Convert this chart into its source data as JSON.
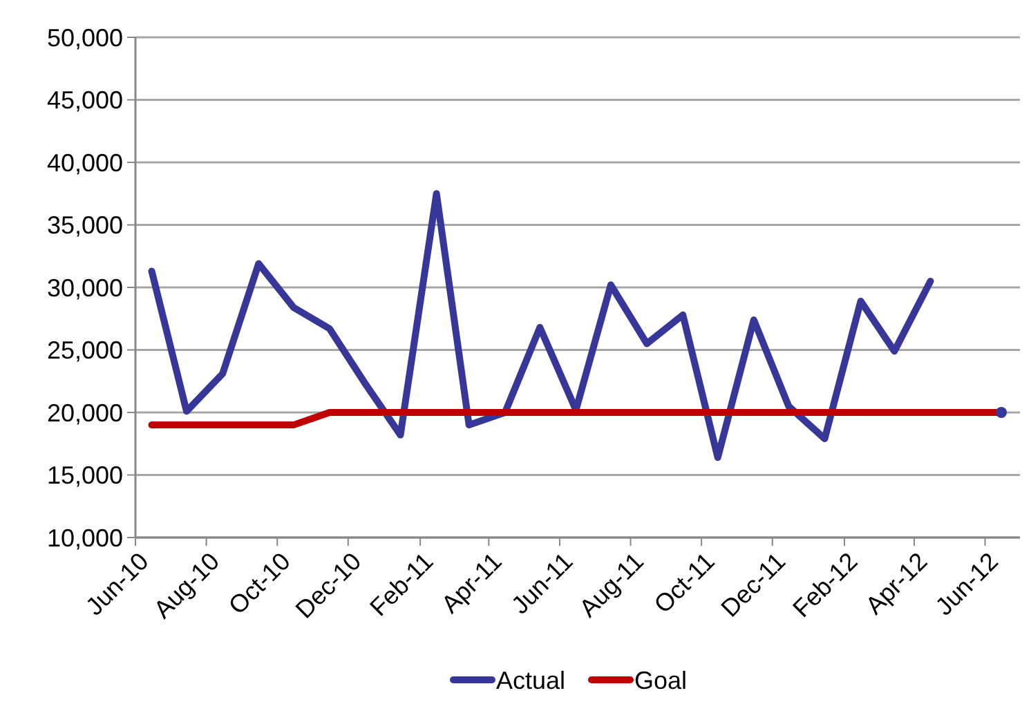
{
  "chart_data": {
    "type": "line",
    "x": [
      "2010-06-15",
      "2010-07-15",
      "2010-08-15",
      "2010-09-15",
      "2010-10-15",
      "2010-11-15",
      "2010-12-15",
      "2011-01-15",
      "2011-02-15",
      "2011-03-15",
      "2011-04-15",
      "2011-05-15",
      "2011-06-15",
      "2011-07-15",
      "2011-08-15",
      "2011-09-15",
      "2011-10-15",
      "2011-11-15",
      "2011-12-15",
      "2012-01-15",
      "2012-02-15",
      "2012-03-15",
      "2012-04-15",
      "2012-05-15",
      "2012-06-15"
    ],
    "series": [
      {
        "name": "Actual",
        "color": "#373799",
        "values": [
          31300,
          20100,
          23100,
          31900,
          28400,
          26700,
          22400,
          18200,
          37500,
          19000,
          20000,
          26800,
          20200,
          30200,
          25500,
          27800,
          16400,
          27400,
          20500,
          17900,
          28900,
          24900,
          30500,
          null,
          20000
        ]
      },
      {
        "name": "Goal",
        "color": "#c00000",
        "values": [
          19000,
          19000,
          19000,
          19000,
          19000,
          20000,
          20000,
          20000,
          20000,
          20000,
          20000,
          20000,
          20000,
          20000,
          20000,
          20000,
          20000,
          20000,
          20000,
          20000,
          20000,
          20000,
          20000,
          20000,
          20000
        ]
      }
    ],
    "xlim": [
      "2010-06-01",
      "2012-07-01"
    ],
    "xticks": [
      {
        "value": "2010-06-01",
        "label": "Jun-10"
      },
      {
        "value": "2010-08-01",
        "label": "Aug-10"
      },
      {
        "value": "2010-10-01",
        "label": "Oct-10"
      },
      {
        "value": "2010-12-01",
        "label": "Dec-10"
      },
      {
        "value": "2011-02-01",
        "label": "Feb-11"
      },
      {
        "value": "2011-04-01",
        "label": "Apr-11"
      },
      {
        "value": "2011-06-01",
        "label": "Jun-11"
      },
      {
        "value": "2011-08-01",
        "label": "Aug-11"
      },
      {
        "value": "2011-10-01",
        "label": "Oct-11"
      },
      {
        "value": "2011-12-01",
        "label": "Dec-11"
      },
      {
        "value": "2012-02-01",
        "label": "Feb-12"
      },
      {
        "value": "2012-04-01",
        "label": "Apr-12"
      },
      {
        "value": "2012-06-01",
        "label": "Jun-12"
      }
    ],
    "ylim": [
      10000,
      50000
    ],
    "yticks": [
      {
        "value": 10000,
        "label": "10,000"
      },
      {
        "value": 15000,
        "label": "15,000"
      },
      {
        "value": 20000,
        "label": "20,000"
      },
      {
        "value": 25000,
        "label": "25,000"
      },
      {
        "value": 30000,
        "label": "30,000"
      },
      {
        "value": 35000,
        "label": "35,000"
      },
      {
        "value": 40000,
        "label": "40,000"
      },
      {
        "value": 45000,
        "label": "45,000"
      },
      {
        "value": 50000,
        "label": "50,000"
      }
    ],
    "grid": "y",
    "legend": "bottom",
    "marker": "none",
    "line_style": "solid"
  }
}
